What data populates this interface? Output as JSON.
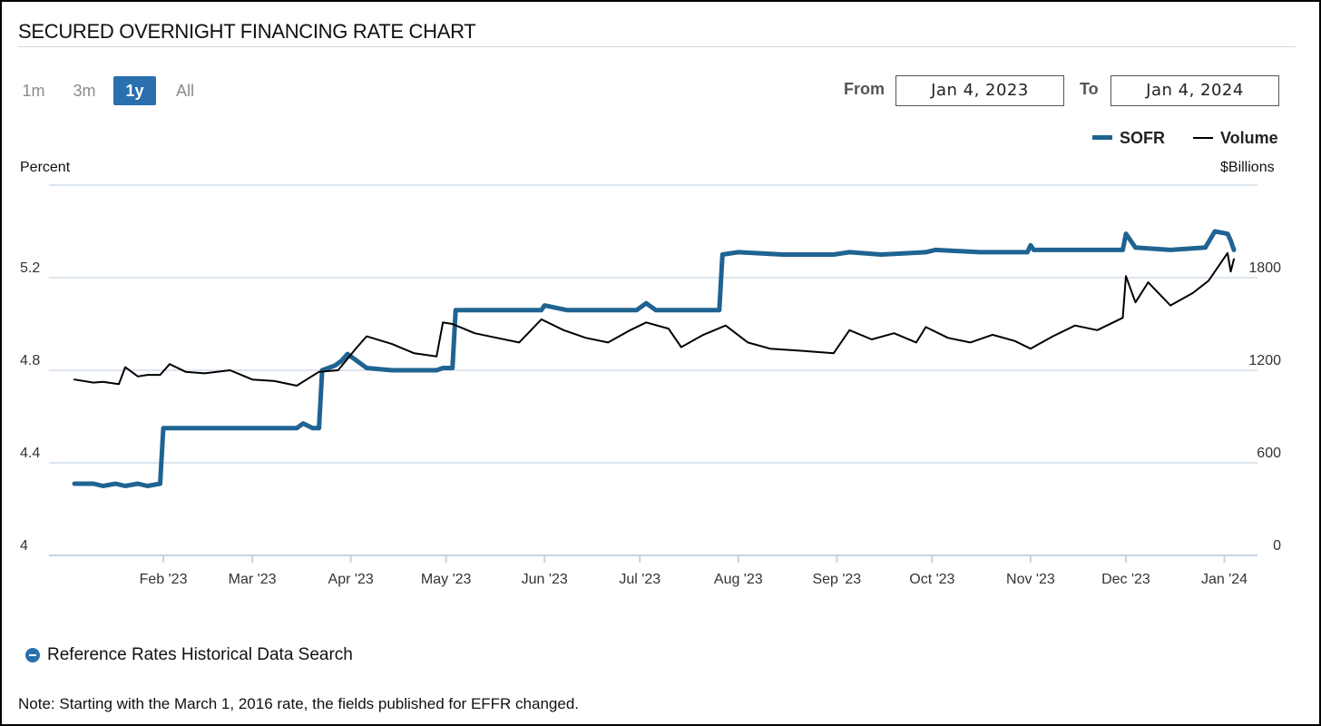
{
  "title": "SECURED OVERNIGHT FINANCING RATE CHART",
  "ranges": [
    {
      "label": "1m",
      "active": false
    },
    {
      "label": "3m",
      "active": false
    },
    {
      "label": "1y",
      "active": true
    },
    {
      "label": "All",
      "active": false
    }
  ],
  "date_range": {
    "from_label": "From",
    "from_value": "Jan 4, 2023",
    "to_label": "To",
    "to_value": "Jan 4, 2024"
  },
  "colors": {
    "sofr": "#1f6391",
    "volume": "#000000",
    "active_button": "#2a6fae"
  },
  "footer": {
    "link_label": "Reference Rates Historical Data Search",
    "note": "Note: Starting with the March 1, 2016 rate, the fields published for EFFR changed."
  },
  "chart_data": {
    "type": "line",
    "x_range": [
      "2023-01-04",
      "2024-01-04"
    ],
    "x_ticks": [
      "Feb '23",
      "Mar '23",
      "Apr '23",
      "May '23",
      "Jun '23",
      "Jul '23",
      "Aug '23",
      "Sep '23",
      "Oct '23",
      "Nov '23",
      "Dec '23",
      "Jan '24"
    ],
    "left_axis": {
      "title": "Percent",
      "ticks": [
        "4",
        "4.4",
        "4.8",
        "5.2"
      ],
      "range": [
        4,
        5.6
      ]
    },
    "right_axis": {
      "title": "$Billions",
      "ticks": [
        "0",
        "600",
        "1200",
        "1800"
      ],
      "range": [
        0,
        2400
      ]
    },
    "grid": "horizontal",
    "legend": "top-right",
    "series": [
      {
        "name": "SOFR",
        "axis": "left",
        "points": [
          [
            "2023-01-04",
            4.31
          ],
          [
            "2023-01-10",
            4.31
          ],
          [
            "2023-01-13",
            4.3
          ],
          [
            "2023-01-17",
            4.31
          ],
          [
            "2023-01-20",
            4.3
          ],
          [
            "2023-01-24",
            4.31
          ],
          [
            "2023-01-27",
            4.3
          ],
          [
            "2023-01-31",
            4.31
          ],
          [
            "2023-02-01",
            4.55
          ],
          [
            "2023-02-10",
            4.55
          ],
          [
            "2023-02-20",
            4.55
          ],
          [
            "2023-03-01",
            4.55
          ],
          [
            "2023-03-10",
            4.55
          ],
          [
            "2023-03-15",
            4.55
          ],
          [
            "2023-03-17",
            4.57
          ],
          [
            "2023-03-20",
            4.55
          ],
          [
            "2023-03-22",
            4.55
          ],
          [
            "2023-03-23",
            4.8
          ],
          [
            "2023-03-27",
            4.82
          ],
          [
            "2023-03-29",
            4.84
          ],
          [
            "2023-03-31",
            4.87
          ],
          [
            "2023-04-03",
            4.84
          ],
          [
            "2023-04-06",
            4.81
          ],
          [
            "2023-04-14",
            4.8
          ],
          [
            "2023-04-28",
            4.8
          ],
          [
            "2023-04-30",
            4.81
          ],
          [
            "2023-05-03",
            4.81
          ],
          [
            "2023-05-04",
            5.06
          ],
          [
            "2023-05-15",
            5.06
          ],
          [
            "2023-05-31",
            5.06
          ],
          [
            "2023-06-01",
            5.08
          ],
          [
            "2023-06-08",
            5.06
          ],
          [
            "2023-06-30",
            5.06
          ],
          [
            "2023-07-03",
            5.09
          ],
          [
            "2023-07-06",
            5.06
          ],
          [
            "2023-07-25",
            5.06
          ],
          [
            "2023-07-26",
            5.06
          ],
          [
            "2023-07-27",
            5.3
          ],
          [
            "2023-08-01",
            5.31
          ],
          [
            "2023-08-15",
            5.3
          ],
          [
            "2023-08-31",
            5.3
          ],
          [
            "2023-09-05",
            5.31
          ],
          [
            "2023-09-15",
            5.3
          ],
          [
            "2023-09-29",
            5.31
          ],
          [
            "2023-10-02",
            5.32
          ],
          [
            "2023-10-16",
            5.31
          ],
          [
            "2023-10-31",
            5.31
          ],
          [
            "2023-11-01",
            5.34
          ],
          [
            "2023-11-02",
            5.32
          ],
          [
            "2023-11-15",
            5.32
          ],
          [
            "2023-11-30",
            5.32
          ],
          [
            "2023-12-01",
            5.39
          ],
          [
            "2023-12-04",
            5.33
          ],
          [
            "2023-12-15",
            5.32
          ],
          [
            "2023-12-26",
            5.33
          ],
          [
            "2023-12-29",
            5.4
          ],
          [
            "2024-01-02",
            5.39
          ],
          [
            "2024-01-03",
            5.36
          ],
          [
            "2024-01-04",
            5.32
          ]
        ]
      },
      {
        "name": "Volume",
        "axis": "right",
        "points": [
          [
            "2023-01-04",
            1140
          ],
          [
            "2023-01-10",
            1120
          ],
          [
            "2023-01-13",
            1125
          ],
          [
            "2023-01-18",
            1110
          ],
          [
            "2023-01-20",
            1220
          ],
          [
            "2023-01-24",
            1160
          ],
          [
            "2023-01-27",
            1170
          ],
          [
            "2023-01-31",
            1170
          ],
          [
            "2023-02-03",
            1240
          ],
          [
            "2023-02-08",
            1190
          ],
          [
            "2023-02-14",
            1180
          ],
          [
            "2023-02-22",
            1200
          ],
          [
            "2023-03-01",
            1140
          ],
          [
            "2023-03-08",
            1130
          ],
          [
            "2023-03-15",
            1100
          ],
          [
            "2023-03-22",
            1190
          ],
          [
            "2023-03-28",
            1200
          ],
          [
            "2023-04-03",
            1350
          ],
          [
            "2023-04-06",
            1420
          ],
          [
            "2023-04-14",
            1370
          ],
          [
            "2023-04-21",
            1310
          ],
          [
            "2023-04-28",
            1290
          ],
          [
            "2023-04-30",
            1510
          ],
          [
            "2023-05-03",
            1500
          ],
          [
            "2023-05-10",
            1440
          ],
          [
            "2023-05-17",
            1410
          ],
          [
            "2023-05-24",
            1380
          ],
          [
            "2023-05-31",
            1530
          ],
          [
            "2023-06-07",
            1460
          ],
          [
            "2023-06-14",
            1410
          ],
          [
            "2023-06-21",
            1380
          ],
          [
            "2023-06-28",
            1460
          ],
          [
            "2023-07-03",
            1510
          ],
          [
            "2023-07-10",
            1470
          ],
          [
            "2023-07-14",
            1350
          ],
          [
            "2023-07-21",
            1430
          ],
          [
            "2023-07-28",
            1490
          ],
          [
            "2023-08-04",
            1380
          ],
          [
            "2023-08-11",
            1340
          ],
          [
            "2023-08-18",
            1330
          ],
          [
            "2023-08-25",
            1320
          ],
          [
            "2023-08-31",
            1310
          ],
          [
            "2023-09-05",
            1460
          ],
          [
            "2023-09-12",
            1400
          ],
          [
            "2023-09-19",
            1440
          ],
          [
            "2023-09-26",
            1380
          ],
          [
            "2023-09-29",
            1480
          ],
          [
            "2023-10-06",
            1410
          ],
          [
            "2023-10-13",
            1380
          ],
          [
            "2023-10-20",
            1430
          ],
          [
            "2023-10-27",
            1390
          ],
          [
            "2023-11-01",
            1340
          ],
          [
            "2023-11-08",
            1420
          ],
          [
            "2023-11-15",
            1490
          ],
          [
            "2023-11-22",
            1460
          ],
          [
            "2023-11-30",
            1540
          ],
          [
            "2023-12-01",
            1810
          ],
          [
            "2023-12-04",
            1640
          ],
          [
            "2023-12-08",
            1770
          ],
          [
            "2023-12-15",
            1620
          ],
          [
            "2023-12-22",
            1700
          ],
          [
            "2023-12-27",
            1780
          ],
          [
            "2024-01-02",
            1960
          ],
          [
            "2024-01-03",
            1840
          ],
          [
            "2024-01-04",
            1920
          ]
        ]
      }
    ]
  }
}
